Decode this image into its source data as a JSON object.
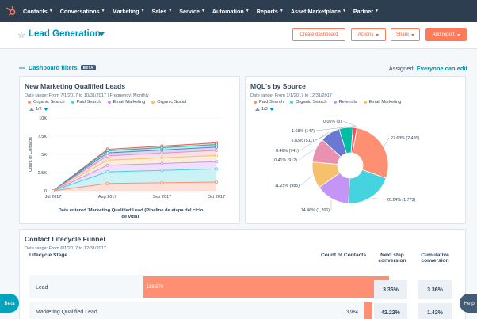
{
  "nav": {
    "items": [
      "Contacts",
      "Conversations",
      "Marketing",
      "Sales",
      "Service",
      "Automation",
      "Reports",
      "Asset Marketplace",
      "Partner"
    ]
  },
  "header": {
    "title": "Lead Generation",
    "create_dashboard": "Create dashboard",
    "actions": "Actions",
    "share": "Share",
    "add_report": "Add report"
  },
  "filters": {
    "label": "Dashboard filters",
    "badge": "BETA",
    "assigned_label": "Assigned:",
    "assigned_value": "Everyone can edit"
  },
  "mql_chart": {
    "title": "New Marketing Qualified Leads",
    "date_range": "Date range: From 7/1/2017 to 10/31/2017",
    "frequency": "Frequency: Monthly",
    "legend": [
      "Organic Search",
      "Paid Search",
      "Email Marketing",
      "Organic Social"
    ],
    "pager": "1/2",
    "ylabel": "Count of Contacts",
    "xlabel_line1": "Date entered 'Marketing Qualified Lead (Pipeline de etapa del ciclo",
    "xlabel_line2": "de vida)'",
    "y_ticks": [
      "10K",
      "7.5K",
      "5K",
      "2.5K",
      "0"
    ],
    "x_ticks": [
      "Jul 2017",
      "Aug 2017",
      "Sep 2017",
      "Oct 2017"
    ]
  },
  "source_chart": {
    "title": "MQL's by Source",
    "date_range": "Date range: From 1/1/2017 to 12/31/2017",
    "legend": [
      "Paid Search",
      "Organic Search",
      "Referrals",
      "Email Marketing"
    ],
    "pager": "1/3"
  },
  "chart_data": [
    {
      "type": "area",
      "title": "New Marketing Qualified Leads",
      "xlabel": "Date entered 'Marketing Qualified Lead (Pipeline de etapa del ciclo de vida)'",
      "ylabel": "Count of Contacts",
      "categories": [
        "Jul 2017",
        "Aug 2017",
        "Sep 2017",
        "Oct 2017"
      ],
      "ylim": [
        0,
        10000
      ],
      "stacked": true,
      "series": [
        {
          "name": "Organic Search",
          "color": "#ff8f73",
          "values": [
            0,
            1000,
            1100,
            1200
          ]
        },
        {
          "name": "Paid Search",
          "color": "#45d3e0",
          "values": [
            0,
            1600,
            1700,
            1800
          ]
        },
        {
          "name": "Email Marketing",
          "color": "#c594f7",
          "values": [
            0,
            900,
            950,
            1000
          ]
        },
        {
          "name": "Organic Social",
          "color": "#f5c26b",
          "values": [
            0,
            700,
            780,
            850
          ]
        },
        {
          "name": "",
          "color": "#ea90b1",
          "values": [
            0,
            600,
            650,
            700
          ]
        },
        {
          "name": "",
          "color": "#6a78d1",
          "values": [
            0,
            400,
            420,
            450
          ]
        },
        {
          "name": "",
          "color": "#00bda5",
          "values": [
            0,
            300,
            320,
            350
          ]
        },
        {
          "name": "",
          "color": "#f2545b",
          "values": [
            0,
            200,
            220,
            240
          ]
        }
      ]
    },
    {
      "type": "pie",
      "title": "MQL's by Source",
      "donut": true,
      "slices": [
        {
          "label": "27.63% (2,420)",
          "value": 27.63,
          "color": "#ff8f73"
        },
        {
          "label": "20.24% (1,773)",
          "value": 20.24,
          "color": "#45d3e0"
        },
        {
          "label": "14.46% (1,266)",
          "value": 14.46,
          "color": "#c594f7"
        },
        {
          "label": "11.25% (985)",
          "value": 11.25,
          "color": "#f5c26b"
        },
        {
          "label": "10.41% (912)",
          "value": 10.41,
          "color": "#ea90b1"
        },
        {
          "label": "8.46% (741)",
          "value": 8.46,
          "color": "#6a78d1"
        },
        {
          "label": "5.83% (511)",
          "value": 5.83,
          "color": "#00bda5"
        },
        {
          "label": "1.68% (147)",
          "value": 1.68,
          "color": "#f2545b"
        },
        {
          "label": "0.05% (3)",
          "value": 0.05,
          "color": "#516f90"
        }
      ]
    }
  ],
  "funnel": {
    "title": "Contact Lifecycle Funnel",
    "date_range": "Date range: From 6/1/2017 to 12/31/2017",
    "col_stage": "Lifecycle Stage",
    "col_count": "Count of Contacts",
    "col_next_1": "Next step",
    "col_next_2": "conversion",
    "col_cum_1": "Cumulative",
    "col_cum_2": "conversion",
    "rows": [
      {
        "label": "Lead",
        "count": "118,570",
        "count_value": 118570,
        "next": "3.36%",
        "cumulative": "3.36%"
      },
      {
        "label": "Marketing Qualified Lead",
        "count": "3,984",
        "count_value": 3984,
        "next": "42.22%",
        "cumulative": "1.42%"
      }
    ]
  },
  "fabs": {
    "beta": "Beta",
    "help": "Help"
  }
}
